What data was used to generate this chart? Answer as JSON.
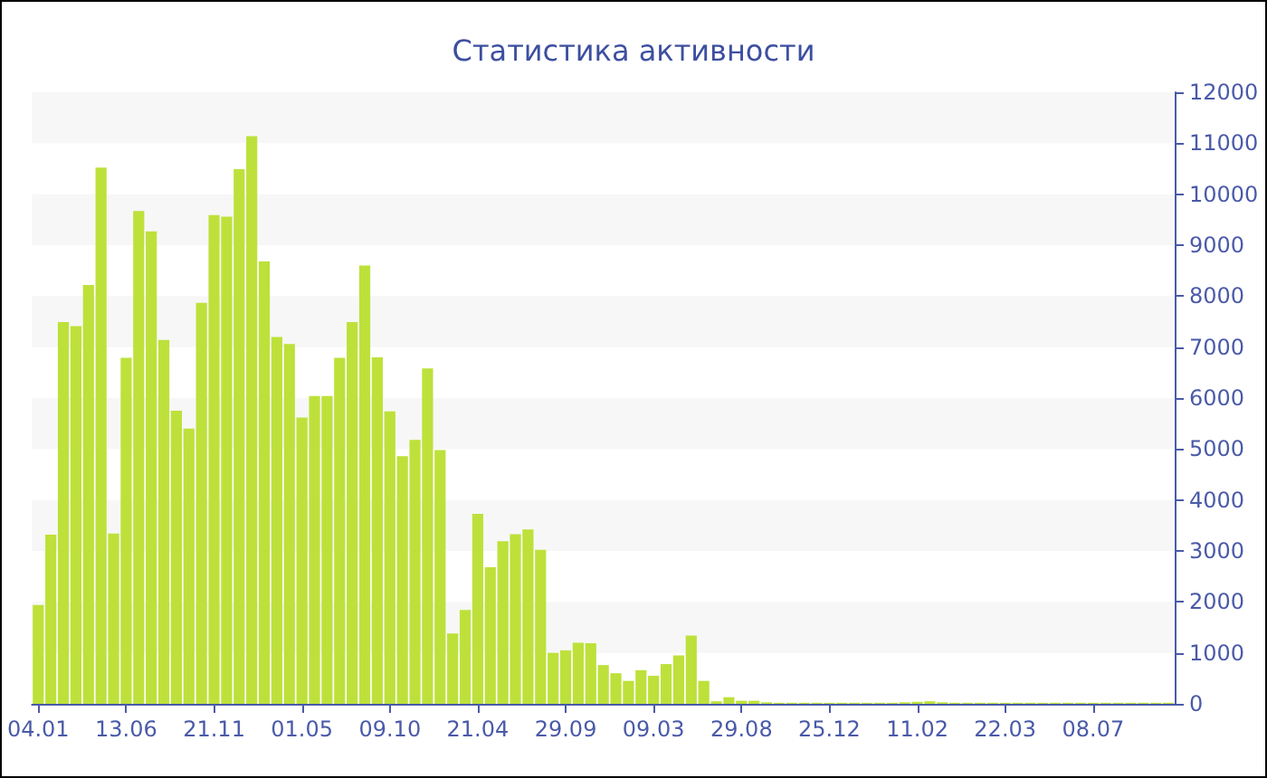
{
  "chart_data": {
    "type": "bar",
    "title": "Статистика активности",
    "categories": [
      "04.01",
      null,
      null,
      null,
      null,
      null,
      null,
      "13.06",
      null,
      null,
      null,
      null,
      null,
      null,
      "21.11",
      null,
      null,
      null,
      null,
      null,
      null,
      "01.05",
      null,
      null,
      null,
      null,
      null,
      null,
      "09.10",
      null,
      null,
      null,
      null,
      null,
      null,
      "21.04",
      null,
      null,
      null,
      null,
      null,
      null,
      "29.09",
      null,
      null,
      null,
      null,
      null,
      null,
      "09.03",
      null,
      null,
      null,
      null,
      null,
      null,
      "29.08",
      null,
      null,
      null,
      null,
      null,
      null,
      "25.12",
      null,
      null,
      null,
      null,
      null,
      null,
      "11.02",
      null,
      null,
      null,
      null,
      null,
      null,
      "22.03",
      null,
      null,
      null,
      null,
      null,
      null,
      "08.07",
      null,
      null,
      null,
      null,
      null,
      null
    ],
    "values": [
      1940,
      3320,
      7490,
      7410,
      8220,
      10520,
      3340,
      6790,
      9670,
      9270,
      7140,
      5750,
      5400,
      7870,
      9590,
      9560,
      10490,
      11140,
      8680,
      7200,
      7060,
      5620,
      6040,
      6040,
      6790,
      7490,
      8600,
      6800,
      5740,
      4860,
      5180,
      6580,
      4980,
      1380,
      1840,
      3730,
      2680,
      3190,
      3330,
      3420,
      3020,
      1000,
      1050,
      1200,
      1190,
      760,
      600,
      450,
      660,
      550,
      780,
      950,
      1340,
      450,
      50,
      130,
      60,
      60,
      30,
      20,
      20,
      20,
      20,
      20,
      20,
      20,
      20,
      20,
      20,
      30,
      40,
      50,
      30,
      20,
      20,
      20,
      20,
      20,
      20,
      20,
      20,
      20,
      20,
      20,
      20,
      20,
      20,
      20,
      20,
      20,
      20
    ],
    "color": "#bde13a",
    "ylim": [
      0,
      12000
    ],
    "yticks": [
      0,
      1000,
      2000,
      3000,
      4000,
      5000,
      6000,
      7000,
      8000,
      9000,
      10000,
      11000,
      12000
    ],
    "bands": [
      {
        "axis": "y",
        "from": 1000,
        "to": 2000,
        "color": "#f7f7f7"
      },
      {
        "axis": "y",
        "from": 3000,
        "to": 4000,
        "color": "#f7f7f7"
      },
      {
        "axis": "y",
        "from": 5000,
        "to": 6000,
        "color": "#f7f7f7"
      },
      {
        "axis": "y",
        "from": 7000,
        "to": 8000,
        "color": "#f7f7f7"
      },
      {
        "axis": "y",
        "from": 9000,
        "to": 10000,
        "color": "#f7f7f7"
      },
      {
        "axis": "y",
        "from": 11000,
        "to": 12000,
        "color": "#f7f7f7"
      }
    ]
  }
}
